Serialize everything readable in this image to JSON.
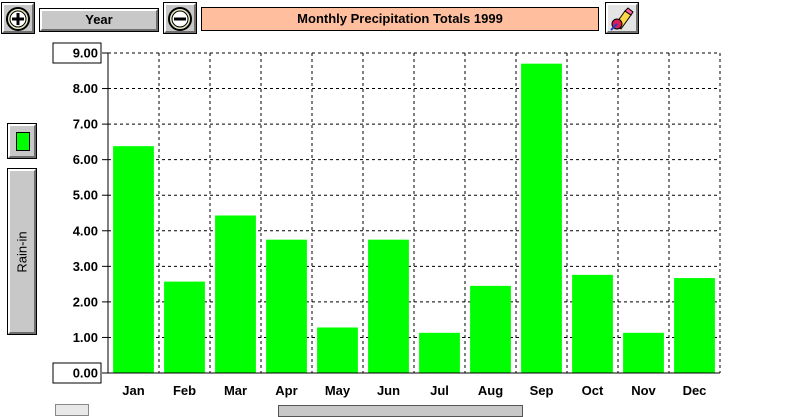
{
  "toolbar": {
    "zoom_in_icon": "zoom-in-icon",
    "zoom_out_icon": "zoom-out-icon",
    "period_label": "Year",
    "paint_icon": "paint-icon"
  },
  "side_panel": {
    "series_color": "#00ff00",
    "ylabel_button_text": "Rain-in"
  },
  "chart_data": {
    "type": "bar",
    "title": "Monthly Precipitation Totals 1999",
    "xlabel": "",
    "ylabel": "Rain-in",
    "categories": [
      "Jan",
      "Feb",
      "Mar",
      "Apr",
      "May",
      "Jun",
      "Jul",
      "Aug",
      "Sep",
      "Oct",
      "Nov",
      "Dec"
    ],
    "values": [
      6.38,
      2.57,
      4.43,
      3.75,
      1.28,
      3.75,
      1.13,
      2.45,
      8.7,
      2.76,
      1.13,
      2.67
    ],
    "ylim": [
      0,
      9
    ],
    "yticks": [
      "0.00",
      "1.00",
      "2.00",
      "3.00",
      "4.00",
      "5.00",
      "6.00",
      "7.00",
      "8.00",
      "9.00"
    ],
    "grid": true,
    "bar_color": "#00ff00"
  }
}
